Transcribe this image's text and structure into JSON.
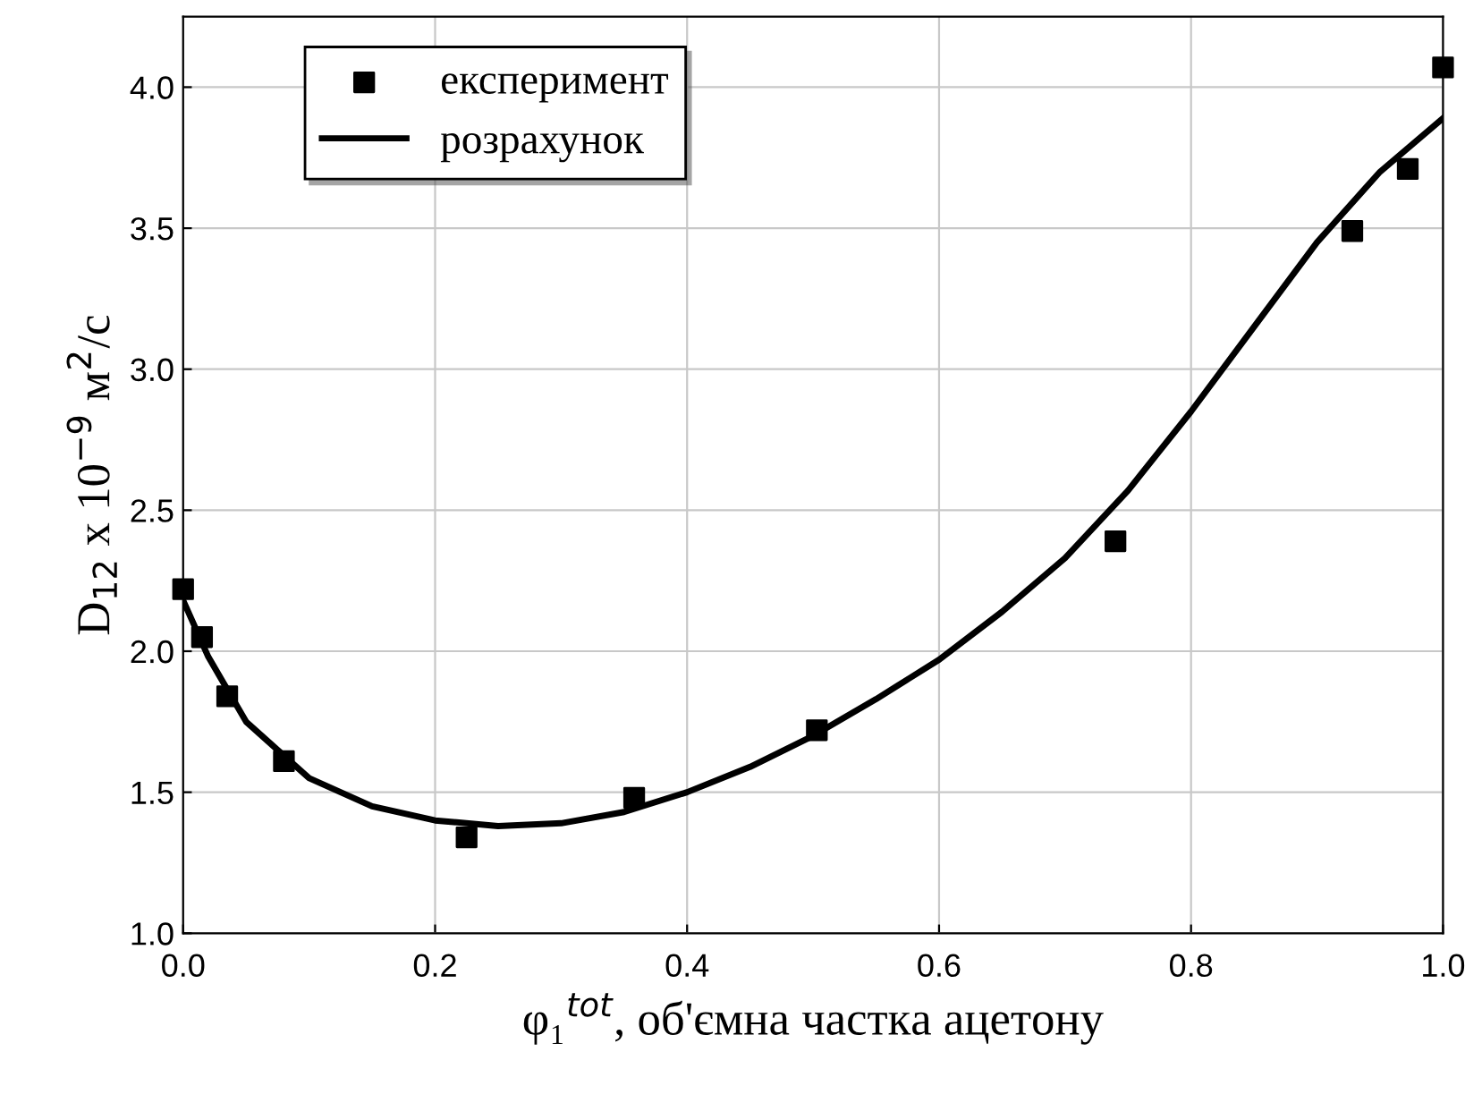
{
  "chart_data": {
    "type": "scatter",
    "xlabel": "φ₁$^{tot}$, об'ємна частка ацетону",
    "ylabel": "D$_{12}$ x 10$^{−9}$ м$^{2}$/с",
    "xlim": [
      0,
      1
    ],
    "ylim": [
      1,
      4.25
    ],
    "xticks": [
      {
        "value": 0,
        "label": "0.0"
      },
      {
        "value": 0.2,
        "label": "0.2"
      },
      {
        "value": 0.4,
        "label": "0.4"
      },
      {
        "value": 0.6,
        "label": "0.6"
      },
      {
        "value": 0.8,
        "label": "0.8"
      },
      {
        "value": 1,
        "label": "1.0"
      }
    ],
    "yticks": [
      {
        "value": 1,
        "label": "1.0"
      },
      {
        "value": 1.5,
        "label": "1.5"
      },
      {
        "value": 2,
        "label": "2.0"
      },
      {
        "value": 2.5,
        "label": "2.5"
      },
      {
        "value": 3,
        "label": "3.0"
      },
      {
        "value": 3.5,
        "label": "3.5"
      },
      {
        "value": 4,
        "label": "4.0"
      }
    ],
    "grid": true,
    "legend": "top left",
    "series": [
      {
        "name": "експеримент",
        "marker": "square",
        "color": "#000000",
        "x": [
          0,
          0.015,
          0.035,
          0.08,
          0.225,
          0.358,
          0.503,
          0.74,
          0.928,
          0.972,
          1.0
        ],
        "values": [
          2.22,
          2.05,
          1.84,
          1.61,
          1.34,
          1.48,
          1.72,
          2.39,
          3.49,
          3.71,
          4.07
        ]
      },
      {
        "name": "розрахунок",
        "type": "line",
        "line_style": "solid",
        "color": "#000000",
        "x": [
          0,
          0.02,
          0.05,
          0.1,
          0.15,
          0.2,
          0.25,
          0.3,
          0.35,
          0.4,
          0.45,
          0.5,
          0.55,
          0.6,
          0.65,
          0.7,
          0.75,
          0.8,
          0.85,
          0.9,
          0.95,
          1.0
        ],
        "values": [
          2.18,
          1.98,
          1.75,
          1.55,
          1.45,
          1.4,
          1.38,
          1.39,
          1.43,
          1.5,
          1.59,
          1.7,
          1.83,
          1.97,
          2.14,
          2.33,
          2.57,
          2.85,
          3.15,
          3.45,
          3.7,
          3.89
        ]
      }
    ]
  }
}
